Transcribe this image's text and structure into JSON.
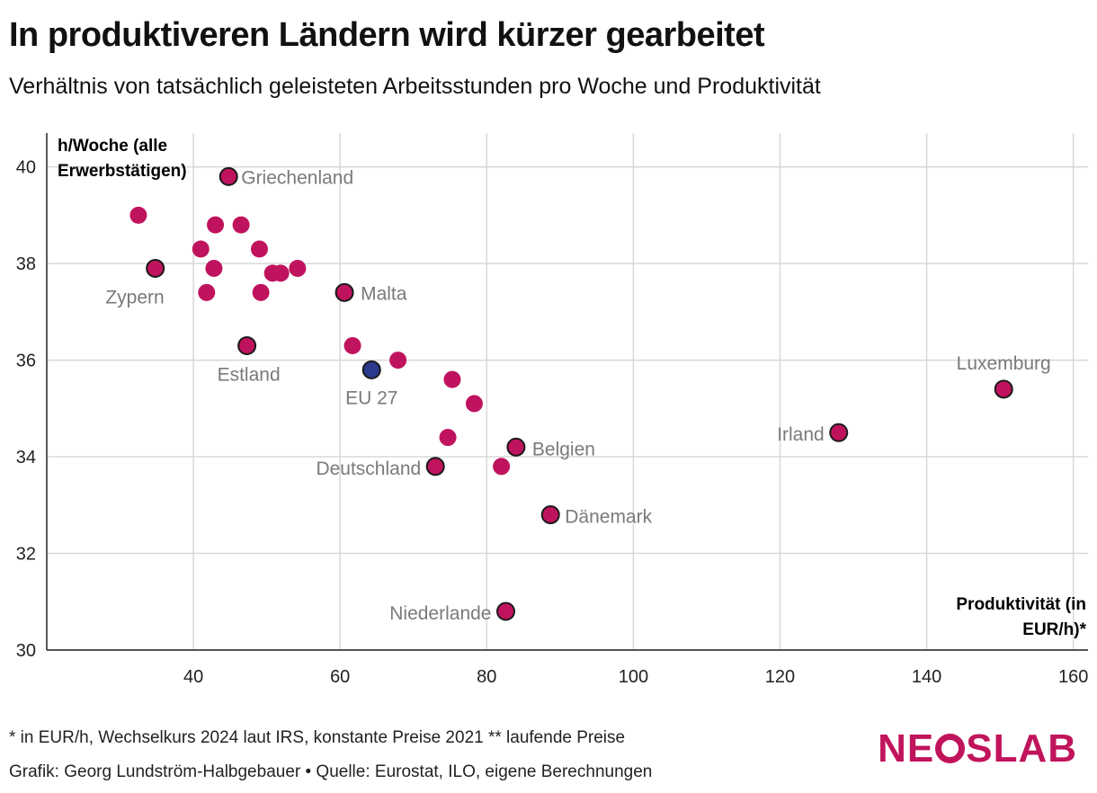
{
  "header": {
    "title": "In produktiveren Ländern wird kürzer gearbeitet",
    "subtitle": "Verhältnis von tatsächlich geleisteten Arbeitsstunden pro Woche und Produktivität"
  },
  "colors": {
    "point": "#c0135e",
    "highlight": "#2b3a8c",
    "grid": "#d8d8d8",
    "label": "#7a7a7a",
    "brand": "#c0145c"
  },
  "chart_data": {
    "type": "scatter",
    "xlim": [
      20,
      162
    ],
    "ylim": [
      30,
      40.7
    ],
    "x_ticks": [
      40,
      60,
      80,
      100,
      120,
      140,
      160
    ],
    "y_ticks": [
      30,
      32,
      34,
      36,
      38,
      40
    ],
    "ylabel_lines": [
      "h/Woche (alle",
      "Erwerbstätigen)"
    ],
    "xlabel_lines": [
      "Produktivität (in",
      "EUR/h)*"
    ],
    "points": [
      {
        "x": 44.8,
        "y": 39.8,
        "label": "Griechenland",
        "outlined": true
      },
      {
        "x": 32.5,
        "y": 39.0
      },
      {
        "x": 43.0,
        "y": 38.8
      },
      {
        "x": 46.5,
        "y": 38.8
      },
      {
        "x": 41.0,
        "y": 38.3
      },
      {
        "x": 49.0,
        "y": 38.3
      },
      {
        "x": 34.8,
        "y": 37.9,
        "label": "Zypern",
        "outlined": true
      },
      {
        "x": 42.8,
        "y": 37.9
      },
      {
        "x": 50.8,
        "y": 37.8
      },
      {
        "x": 51.9,
        "y": 37.8
      },
      {
        "x": 54.2,
        "y": 37.9
      },
      {
        "x": 41.8,
        "y": 37.4
      },
      {
        "x": 49.2,
        "y": 37.4
      },
      {
        "x": 60.6,
        "y": 37.4,
        "label": "Malta",
        "outlined": true
      },
      {
        "x": 47.3,
        "y": 36.3,
        "label": "Estland",
        "outlined": true
      },
      {
        "x": 61.7,
        "y": 36.3
      },
      {
        "x": 67.9,
        "y": 36.0
      },
      {
        "x": 64.3,
        "y": 35.8,
        "label": "EU 27",
        "outlined": true,
        "highlight": true
      },
      {
        "x": 75.3,
        "y": 35.6
      },
      {
        "x": 78.3,
        "y": 35.1
      },
      {
        "x": 74.7,
        "y": 34.4
      },
      {
        "x": 84.0,
        "y": 34.2,
        "label": "Belgien",
        "outlined": true
      },
      {
        "x": 73.0,
        "y": 33.8,
        "label": "Deutschland",
        "outlined": true
      },
      {
        "x": 82.0,
        "y": 33.8
      },
      {
        "x": 88.7,
        "y": 32.8,
        "label": "Dänemark",
        "outlined": true
      },
      {
        "x": 82.6,
        "y": 30.8,
        "label": "Niederlande",
        "outlined": true
      },
      {
        "x": 128.0,
        "y": 34.5,
        "label": "Irland",
        "outlined": true
      },
      {
        "x": 150.5,
        "y": 35.4,
        "label": "Luxemburg",
        "outlined": true
      }
    ]
  },
  "footer": {
    "note": "* in EUR/h, Wechselkurs 2024 laut IRS, konstante Preise 2021 ** laufende Preise",
    "credit": "Grafik: Georg Lundström-Halbgebauer • Quelle: Eurostat, ILO, eigene Berechnungen",
    "logo": {
      "part1": "NE",
      "part2": "SLAB"
    }
  }
}
